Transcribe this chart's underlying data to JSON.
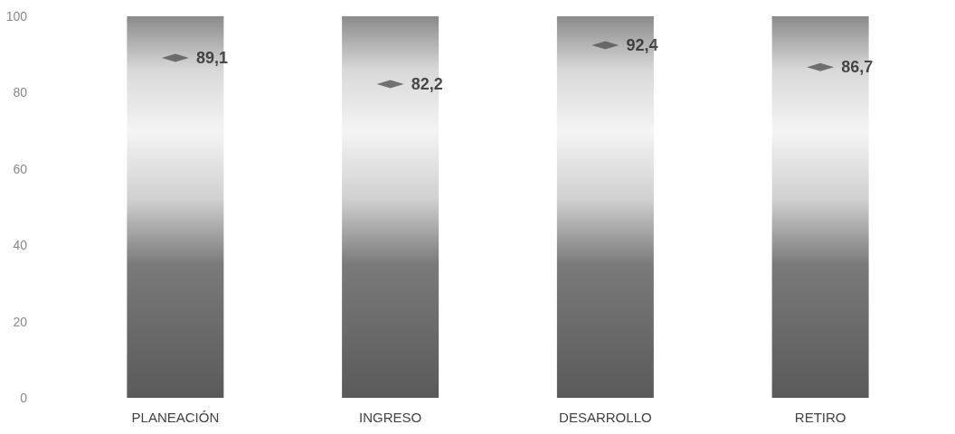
{
  "chart_data": {
    "type": "scatter",
    "categories": [
      "PLANEACIÓN",
      "INGRESO",
      "DESARROLLO",
      "RETIRO"
    ],
    "values": [
      89.1,
      82.2,
      92.4,
      86.7
    ],
    "value_labels": [
      "89,1",
      "82,2",
      "92,4",
      "86,7"
    ],
    "color": "#555555",
    "marker": "diamond",
    "bands": [
      {
        "axis": "x",
        "from": "PLANEACIÓN",
        "to": "PLANEACIÓN"
      },
      {
        "axis": "x",
        "from": "INGRESO",
        "to": "INGRESO"
      },
      {
        "axis": "x",
        "from": "DESARROLLO",
        "to": "DESARROLLO"
      },
      {
        "axis": "x",
        "from": "RETIRO",
        "to": "RETIRO"
      }
    ],
    "ylim": [
      0,
      100
    ],
    "yticks": [
      0,
      20,
      40,
      60,
      80,
      100
    ],
    "grid": false
  }
}
